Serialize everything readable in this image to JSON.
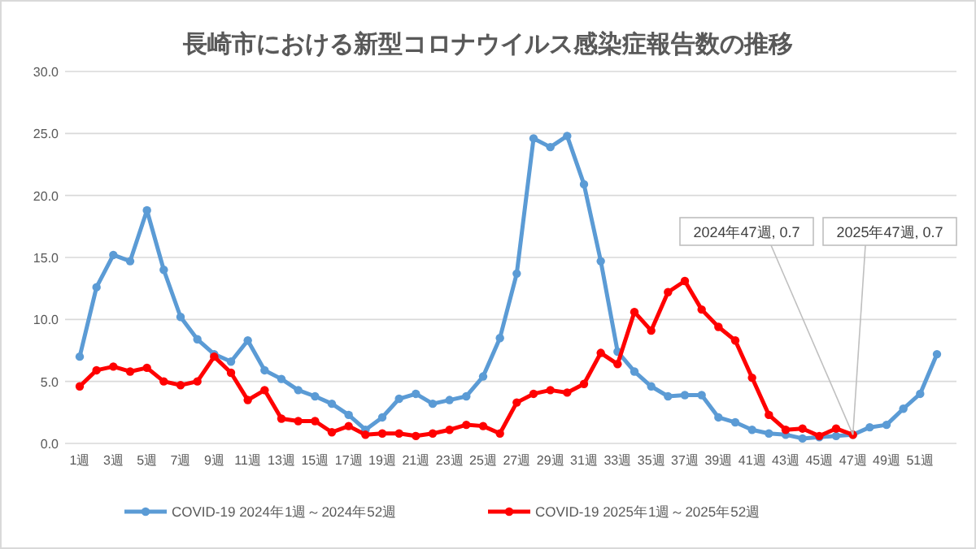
{
  "chart_data": {
    "type": "line",
    "title": "長崎市における新型コロナウイルス感染症報告数の推移",
    "categories": [
      "1週",
      null,
      "3週",
      null,
      "5週",
      null,
      "7週",
      null,
      "9週",
      null,
      "11週",
      null,
      "13週",
      null,
      "15週",
      null,
      "17週",
      null,
      "19週",
      null,
      "21週",
      null,
      "23週",
      null,
      "25週",
      null,
      "27週",
      null,
      "29週",
      null,
      "31週",
      null,
      "33週",
      null,
      "35週",
      null,
      "37週",
      null,
      "39週",
      null,
      "41週",
      null,
      "43週",
      null,
      "45週",
      null,
      "47週",
      null,
      "49週",
      null,
      "51週",
      null
    ],
    "series": [
      {
        "name": "COVID-19 2024年1週～2024年52週",
        "color": "#5b9bd5",
        "values": [
          7.0,
          12.6,
          15.2,
          14.7,
          18.8,
          14.0,
          10.2,
          8.4,
          7.2,
          6.6,
          8.3,
          5.9,
          5.2,
          4.3,
          3.8,
          3.2,
          2.3,
          1.1,
          2.1,
          3.6,
          4.0,
          3.2,
          3.5,
          3.8,
          5.4,
          8.5,
          13.7,
          24.6,
          23.9,
          24.8,
          20.9,
          14.7,
          7.4,
          5.8,
          4.6,
          3.8,
          3.9,
          3.9,
          2.1,
          1.7,
          1.1,
          0.8,
          0.7,
          0.4,
          0.5,
          0.6,
          0.7,
          1.3,
          1.5,
          2.8,
          4.0,
          7.2
        ]
      },
      {
        "name": "COVID-19 2025年1週～2025年52週",
        "color": "#ff0000",
        "values": [
          4.6,
          5.9,
          6.2,
          5.8,
          6.1,
          5.0,
          4.7,
          5.0,
          7.0,
          5.7,
          3.5,
          4.3,
          2.0,
          1.8,
          1.8,
          0.9,
          1.4,
          0.7,
          0.8,
          0.8,
          0.6,
          0.8,
          1.1,
          1.5,
          1.4,
          0.8,
          3.3,
          4.0,
          4.3,
          4.1,
          4.8,
          7.3,
          6.4,
          10.6,
          9.1,
          12.2,
          13.1,
          10.8,
          9.4,
          8.3,
          5.3,
          2.3,
          1.1,
          1.2,
          0.6,
          1.2,
          0.7,
          null,
          null,
          null,
          null,
          null
        ]
      }
    ],
    "ylim": [
      0,
      30
    ],
    "yticks": [
      {
        "value": 0,
        "label": "0.0"
      },
      {
        "value": 5,
        "label": "5.0"
      },
      {
        "value": 10,
        "label": "10.0"
      },
      {
        "value": 15,
        "label": "15.0"
      },
      {
        "value": 20,
        "label": "20.0"
      },
      {
        "value": 25,
        "label": "25.0"
      },
      {
        "value": 30,
        "label": "30.0"
      }
    ],
    "grid": "y",
    "legend": "bottom",
    "marker": "circle",
    "line_style": "solid",
    "annotations": [
      {
        "text": "2024年47週, 0.7",
        "x": "47週",
        "y": 0.7
      },
      {
        "text": "2025年47週, 0.7",
        "x": "47週",
        "y": 0.7
      }
    ]
  }
}
